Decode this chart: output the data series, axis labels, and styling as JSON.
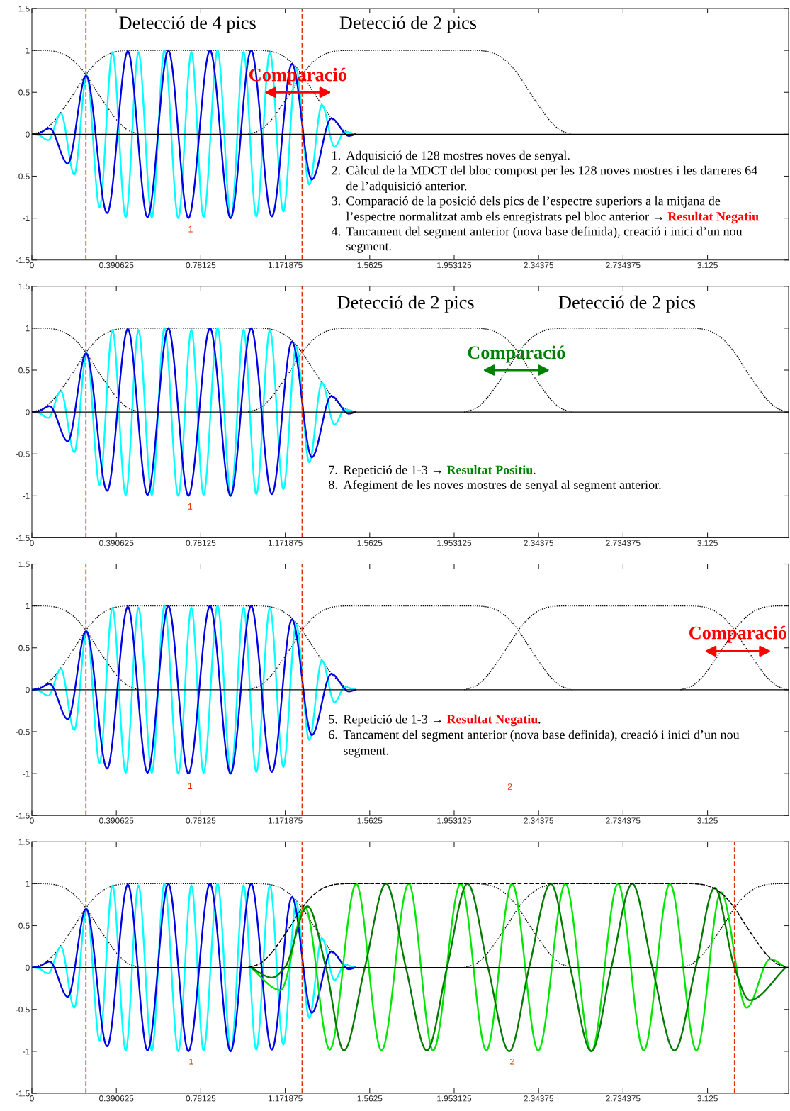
{
  "chart_data": [
    {
      "type": "line",
      "xlim": [
        0,
        3.5
      ],
      "ylim": [
        -1.5,
        1.5
      ],
      "xticks": [
        0,
        0.390625,
        0.78125,
        1.171875,
        1.5625,
        1.953125,
        2.34375,
        2.734375,
        3.125
      ],
      "yticks": [
        -1.5,
        -1,
        -0.5,
        0,
        0.5,
        1,
        1.5
      ],
      "series": [
        {
          "color": "#000000",
          "line_style": "dotted",
          "x": [
            0,
            0.05,
            0.1,
            0.15,
            0.2,
            0.25,
            0.3,
            0.35,
            0.4,
            0.45,
            0.5
          ],
          "values": [
            1,
            1,
            0.99,
            0.95,
            0.86,
            0.71,
            0.51,
            0.32,
            0.15,
            0.04,
            0
          ]
        },
        {
          "color": "#000000",
          "line_style": "dotted",
          "x": [
            0,
            0.05,
            0.1,
            0.15,
            0.2,
            0.25,
            0.3,
            0.35,
            0.4,
            0.45,
            0.5,
            1.0,
            1.05,
            1.1,
            1.15,
            1.2,
            1.25,
            1.3,
            1.35,
            1.4,
            1.45,
            1.5
          ],
          "values": [
            0,
            0.04,
            0.15,
            0.32,
            0.51,
            0.71,
            0.86,
            0.95,
            0.99,
            1,
            1,
            1,
            1,
            0.99,
            0.95,
            0.86,
            0.71,
            0.51,
            0.32,
            0.15,
            0.04,
            0
          ]
        },
        {
          "color": "#000000",
          "line_style": "dotted",
          "x": [
            1.0,
            1.05,
            1.1,
            1.15,
            1.2,
            1.25,
            1.3,
            1.35,
            1.4,
            1.45,
            1.5,
            2.0,
            2.05,
            2.1,
            2.15,
            2.2,
            2.25,
            2.3,
            2.35,
            2.4,
            2.45,
            2.5
          ],
          "values": [
            0,
            0.04,
            0.15,
            0.32,
            0.51,
            0.71,
            0.86,
            0.95,
            0.99,
            1,
            1,
            1,
            1,
            0.99,
            0.95,
            0.86,
            0.71,
            0.51,
            0.32,
            0.15,
            0.04,
            0
          ]
        },
        {
          "color": "#00ffff",
          "x": [
            0,
            0.03,
            0.076,
            0.134,
            0.196,
            0.254,
            0.313,
            0.373,
            0.434,
            0.493,
            0.555,
            0.613,
            0.677,
            0.738,
            0.794,
            0.859,
            0.921,
            0.979,
            1.038,
            1.101,
            1.163,
            1.222,
            1.283,
            1.341,
            1.4,
            1.447,
            1.496
          ],
          "values": [
            0,
            -0.01,
            -0.07,
            0.25,
            -0.48,
            0.7,
            -0.87,
            0.98,
            -0.99,
            0.98,
            -0.99,
            1,
            -1,
            0.98,
            -0.99,
            1,
            -1,
            0.98,
            -0.98,
            0.98,
            -0.92,
            0.78,
            -0.6,
            0.35,
            -0.15,
            0.03,
            0
          ]
        },
        {
          "color": "#0000e6",
          "x": [
            0,
            0.03,
            0.082,
            0.166,
            0.251,
            0.348,
            0.444,
            0.535,
            0.631,
            0.724,
            0.824,
            0.919,
            1.014,
            1.11,
            1.203,
            1.295,
            1.385,
            1.466,
            1.496
          ],
          "values": [
            0,
            0.01,
            0.07,
            -0.35,
            0.7,
            -0.94,
            0.99,
            -0.99,
            1,
            -1,
            1,
            -1,
            1,
            -0.98,
            0.84,
            -0.54,
            0.19,
            -0.02,
            0
          ]
        }
      ],
      "ref_lines": [
        {
          "axis": "y",
          "value": 0,
          "color": "#000000",
          "line_style": "solid"
        },
        {
          "axis": "x",
          "value": 0.25,
          "color": "#e03000",
          "line_style": "dashed"
        },
        {
          "axis": "x",
          "value": 1.25,
          "color": "#e03000",
          "line_style": "dashed"
        }
      ],
      "annotations": [
        "Detecció de 4 pics",
        "Detecció de 2 pics",
        "Comparació",
        "1",
        "1.",
        "Adquisició de 128 mostres noves de senyal.",
        "2.",
        "Càlcul de la MDCT del bloc compost per les 128 noves mostres i les darreres 64",
        "de l’adquisició anterior.",
        "3.",
        "Comparació de la posició dels pics de l’espectre superiors a la mitjana de",
        "l’espectre normalitzat amb els enregistrats pel bloc anterior →",
        " Resultat Negatiu",
        "4.",
        "Tancament del segment anterior (nova base definida), creació i inici d’un nou",
        "segment."
      ]
    },
    {
      "type": "line",
      "xlim": [
        0,
        3.5
      ],
      "ylim": [
        -1.5,
        1.5
      ],
      "xticks": [
        0,
        0.390625,
        0.78125,
        1.171875,
        1.5625,
        1.953125,
        2.34375,
        2.734375,
        3.125
      ],
      "yticks": [
        -1.5,
        -1,
        -0.5,
        0,
        0.5,
        1,
        1.5
      ],
      "series": [
        {
          "color": "#000000",
          "line_style": "dotted",
          "x": [
            0,
            0.05,
            0.1,
            0.15,
            0.2,
            0.25,
            0.3,
            0.35,
            0.4,
            0.45,
            0.5
          ],
          "values": [
            1,
            1,
            0.99,
            0.95,
            0.86,
            0.71,
            0.51,
            0.32,
            0.15,
            0.04,
            0
          ]
        },
        {
          "color": "#000000",
          "line_style": "dotted",
          "x": [
            0,
            0.05,
            0.1,
            0.15,
            0.2,
            0.25,
            0.3,
            0.35,
            0.4,
            0.45,
            0.5,
            1.0,
            1.05,
            1.1,
            1.15,
            1.2,
            1.25,
            1.3,
            1.35,
            1.4,
            1.45,
            1.5
          ],
          "values": [
            0,
            0.04,
            0.15,
            0.32,
            0.51,
            0.71,
            0.86,
            0.95,
            0.99,
            1,
            1,
            1,
            1,
            0.99,
            0.95,
            0.86,
            0.71,
            0.51,
            0.32,
            0.15,
            0.04,
            0
          ]
        },
        {
          "color": "#000000",
          "line_style": "dotted",
          "x": [
            1.0,
            1.05,
            1.1,
            1.15,
            1.2,
            1.25,
            1.3,
            1.35,
            1.4,
            1.45,
            1.5,
            2.0,
            2.05,
            2.1,
            2.15,
            2.2,
            2.25,
            2.3,
            2.35,
            2.4,
            2.45,
            2.5
          ],
          "values": [
            0,
            0.04,
            0.15,
            0.32,
            0.51,
            0.71,
            0.86,
            0.95,
            0.99,
            1,
            1,
            1,
            1,
            0.99,
            0.95,
            0.86,
            0.71,
            0.51,
            0.32,
            0.15,
            0.04,
            0
          ]
        },
        {
          "color": "#000000",
          "line_style": "dotted",
          "x": [
            2.0,
            2.05,
            2.1,
            2.15,
            2.2,
            2.25,
            2.3,
            2.35,
            2.4,
            2.45,
            2.5,
            3.0,
            3.05,
            3.1,
            3.15,
            3.2,
            3.25,
            3.3,
            3.35,
            3.4,
            3.45,
            3.5
          ],
          "values": [
            0,
            0.04,
            0.15,
            0.32,
            0.51,
            0.71,
            0.86,
            0.95,
            0.99,
            1,
            1,
            1,
            1,
            0.99,
            0.95,
            0.86,
            0.71,
            0.51,
            0.32,
            0.15,
            0.04,
            0
          ]
        },
        {
          "color": "#00ffff",
          "x": [
            0,
            0.03,
            0.076,
            0.134,
            0.196,
            0.254,
            0.313,
            0.373,
            0.434,
            0.493,
            0.555,
            0.613,
            0.677,
            0.738,
            0.794,
            0.859,
            0.921,
            0.979,
            1.038,
            1.101,
            1.163,
            1.222,
            1.283,
            1.341,
            1.4,
            1.447,
            1.496
          ],
          "values": [
            0,
            -0.01,
            -0.07,
            0.25,
            -0.48,
            0.7,
            -0.87,
            0.98,
            -0.99,
            0.98,
            -0.99,
            1,
            -1,
            0.98,
            -0.99,
            1,
            -1,
            0.98,
            -0.98,
            0.98,
            -0.92,
            0.78,
            -0.6,
            0.35,
            -0.15,
            0.03,
            0
          ]
        },
        {
          "color": "#0000e6",
          "x": [
            0,
            0.03,
            0.082,
            0.166,
            0.251,
            0.348,
            0.444,
            0.535,
            0.631,
            0.724,
            0.824,
            0.919,
            1.014,
            1.11,
            1.203,
            1.295,
            1.385,
            1.466,
            1.496
          ],
          "values": [
            0,
            0.01,
            0.07,
            -0.35,
            0.7,
            -0.94,
            0.99,
            -0.99,
            1,
            -1,
            1,
            -1,
            1,
            -0.98,
            0.84,
            -0.54,
            0.19,
            -0.02,
            0
          ]
        }
      ],
      "ref_lines": [
        {
          "axis": "y",
          "value": 0,
          "color": "#000000",
          "line_style": "solid"
        },
        {
          "axis": "x",
          "value": 0.25,
          "color": "#e03000",
          "line_style": "dashed"
        },
        {
          "axis": "x",
          "value": 1.25,
          "color": "#e03000",
          "line_style": "dashed"
        }
      ],
      "annotations": [
        "Detecció de 2 pics",
        "Detecció de 2 pics",
        "Comparació",
        "1",
        "7.",
        "Repetició de 1-3 →",
        " Resultat Positiu",
        ".",
        "8.",
        "Afegiment de les noves mostres de senyal al segment anterior."
      ]
    },
    {
      "type": "line",
      "xlim": [
        0,
        3.5
      ],
      "ylim": [
        -1.5,
        1.5
      ],
      "xticks": [
        0,
        0.390625,
        0.78125,
        1.171875,
        1.5625,
        1.953125,
        2.34375,
        2.734375,
        3.125
      ],
      "yticks": [
        -1.5,
        -1,
        -0.5,
        0,
        0.5,
        1,
        1.5
      ],
      "series": [
        {
          "color": "#000000",
          "line_style": "dotted",
          "x": [
            0,
            0.05,
            0.1,
            0.15,
            0.2,
            0.25,
            0.3,
            0.35,
            0.4,
            0.45,
            0.5
          ],
          "values": [
            1,
            1,
            0.99,
            0.95,
            0.86,
            0.71,
            0.51,
            0.32,
            0.15,
            0.04,
            0
          ]
        },
        {
          "color": "#000000",
          "line_style": "dotted",
          "x": [
            0,
            0.05,
            0.1,
            0.15,
            0.2,
            0.25,
            0.3,
            0.35,
            0.4,
            0.45,
            0.5,
            1.0,
            1.05,
            1.1,
            1.15,
            1.2,
            1.25,
            1.3,
            1.35,
            1.4,
            1.45,
            1.5
          ],
          "values": [
            0,
            0.04,
            0.15,
            0.32,
            0.51,
            0.71,
            0.86,
            0.95,
            0.99,
            1,
            1,
            1,
            1,
            0.99,
            0.95,
            0.86,
            0.71,
            0.51,
            0.32,
            0.15,
            0.04,
            0
          ]
        },
        {
          "color": "#000000",
          "line_style": "dotted",
          "x": [
            1.0,
            1.05,
            1.1,
            1.15,
            1.2,
            1.25,
            1.3,
            1.35,
            1.4,
            1.45,
            1.5,
            2.0,
            2.05,
            2.1,
            2.15,
            2.2,
            2.25,
            2.3,
            2.35,
            2.4,
            2.45,
            2.5
          ],
          "values": [
            0,
            0.04,
            0.15,
            0.32,
            0.51,
            0.71,
            0.86,
            0.95,
            0.99,
            1,
            1,
            1,
            1,
            0.99,
            0.95,
            0.86,
            0.71,
            0.51,
            0.32,
            0.15,
            0.04,
            0
          ]
        },
        {
          "color": "#000000",
          "line_style": "dotted",
          "x": [
            2.0,
            2.05,
            2.1,
            2.15,
            2.2,
            2.25,
            2.3,
            2.35,
            2.4,
            2.45,
            2.5,
            3.0,
            3.05,
            3.1,
            3.15,
            3.2,
            3.25,
            3.3,
            3.35,
            3.4,
            3.45,
            3.5
          ],
          "values": [
            0,
            0.04,
            0.15,
            0.32,
            0.51,
            0.71,
            0.86,
            0.95,
            0.99,
            1,
            1,
            1,
            1,
            0.99,
            0.95,
            0.86,
            0.71,
            0.51,
            0.32,
            0.15,
            0.04,
            0
          ]
        },
        {
          "color": "#000000",
          "line_style": "dotted",
          "x": [
            3.0,
            3.05,
            3.1,
            3.15,
            3.2,
            3.25,
            3.3,
            3.35,
            3.4,
            3.45,
            3.5
          ],
          "values": [
            0,
            0.04,
            0.15,
            0.32,
            0.51,
            0.71,
            0.86,
            0.95,
            0.99,
            1,
            1
          ]
        },
        {
          "color": "#00ffff",
          "x": [
            0,
            0.03,
            0.076,
            0.134,
            0.196,
            0.254,
            0.313,
            0.373,
            0.434,
            0.493,
            0.555,
            0.613,
            0.677,
            0.738,
            0.794,
            0.859,
            0.921,
            0.979,
            1.038,
            1.101,
            1.163,
            1.222,
            1.283,
            1.341,
            1.4,
            1.447,
            1.496
          ],
          "values": [
            0,
            -0.01,
            -0.07,
            0.25,
            -0.48,
            0.7,
            -0.87,
            0.98,
            -0.99,
            0.98,
            -0.99,
            1,
            -1,
            0.98,
            -0.99,
            1,
            -1,
            0.98,
            -0.98,
            0.98,
            -0.92,
            0.78,
            -0.6,
            0.35,
            -0.15,
            0.03,
            0
          ]
        },
        {
          "color": "#0000e6",
          "x": [
            0,
            0.03,
            0.082,
            0.166,
            0.251,
            0.348,
            0.444,
            0.535,
            0.631,
            0.724,
            0.824,
            0.919,
            1.014,
            1.11,
            1.203,
            1.295,
            1.385,
            1.466,
            1.496
          ],
          "values": [
            0,
            0.01,
            0.07,
            -0.35,
            0.7,
            -0.94,
            0.99,
            -0.99,
            1,
            -1,
            1,
            -1,
            1,
            -0.98,
            0.84,
            -0.54,
            0.19,
            -0.02,
            0
          ]
        }
      ],
      "ref_lines": [
        {
          "axis": "y",
          "value": 0,
          "color": "#000000",
          "line_style": "solid"
        },
        {
          "axis": "x",
          "value": 0.25,
          "color": "#e03000",
          "line_style": "dashed"
        },
        {
          "axis": "x",
          "value": 1.25,
          "color": "#e03000",
          "line_style": "dashed"
        }
      ],
      "annotations": [
        "Comparació",
        "1",
        "2",
        "5.",
        "Repetició de 1-3 →",
        " Resultat Negatiu",
        ".",
        "6.",
        "Tancament del segment anterior (nova base definida), creació i inici d’un nou",
        "segment."
      ]
    },
    {
      "type": "line",
      "xlim": [
        0,
        3.5
      ],
      "ylim": [
        -1.5,
        1.5
      ],
      "xticks": [
        0,
        0.390625,
        0.78125,
        1.171875,
        1.5625,
        1.953125,
        2.34375,
        2.734375,
        3.125
      ],
      "yticks": [
        -1.5,
        -1,
        -0.5,
        0,
        0.5,
        1,
        1.5
      ],
      "series": [
        {
          "color": "#000000",
          "line_style": "dotted",
          "x": [
            0,
            0.05,
            0.1,
            0.15,
            0.2,
            0.25,
            0.3,
            0.35,
            0.4,
            0.45,
            0.5
          ],
          "values": [
            1,
            1,
            0.99,
            0.95,
            0.86,
            0.71,
            0.51,
            0.32,
            0.15,
            0.04,
            0
          ]
        },
        {
          "color": "#000000",
          "line_style": "dotted",
          "x": [
            0,
            0.05,
            0.1,
            0.15,
            0.2,
            0.25,
            0.3,
            0.35,
            0.4,
            0.45,
            0.5,
            1.0,
            1.05,
            1.1,
            1.15,
            1.2,
            1.25,
            1.3,
            1.35,
            1.4,
            1.45,
            1.5
          ],
          "values": [
            0,
            0.04,
            0.15,
            0.32,
            0.51,
            0.71,
            0.86,
            0.95,
            0.99,
            1,
            1,
            1,
            1,
            0.99,
            0.95,
            0.86,
            0.71,
            0.51,
            0.32,
            0.15,
            0.04,
            0
          ]
        },
        {
          "color": "#000000",
          "line_style": "dotted",
          "x": [
            1.0,
            1.05,
            1.1,
            1.15,
            1.2,
            1.25,
            1.3,
            1.35,
            1.4,
            1.45,
            1.5,
            2.0,
            2.05,
            2.1,
            2.15,
            2.2,
            2.25,
            2.3,
            2.35,
            2.4,
            2.45,
            2.5
          ],
          "values": [
            0,
            0.04,
            0.15,
            0.32,
            0.51,
            0.71,
            0.86,
            0.95,
            0.99,
            1,
            1,
            1,
            1,
            0.99,
            0.95,
            0.86,
            0.71,
            0.51,
            0.32,
            0.15,
            0.04,
            0
          ]
        },
        {
          "color": "#000000",
          "line_style": "dotted",
          "x": [
            2.0,
            2.05,
            2.1,
            2.15,
            2.2,
            2.25,
            2.3,
            2.35,
            2.4,
            2.45,
            2.5,
            3.0,
            3.05,
            3.1,
            3.15,
            3.2,
            3.25,
            3.3,
            3.35,
            3.4,
            3.45,
            3.5
          ],
          "values": [
            0,
            0.04,
            0.15,
            0.32,
            0.51,
            0.71,
            0.86,
            0.95,
            0.99,
            1,
            1,
            1,
            1,
            0.99,
            0.95,
            0.86,
            0.71,
            0.51,
            0.32,
            0.15,
            0.04,
            0
          ]
        },
        {
          "color": "#000000",
          "line_style": "dotted",
          "x": [
            3.0,
            3.05,
            3.1,
            3.15,
            3.2,
            3.25,
            3.3,
            3.35,
            3.4,
            3.45,
            3.5
          ],
          "values": [
            0,
            0.04,
            0.15,
            0.32,
            0.51,
            0.71,
            0.86,
            0.95,
            0.99,
            1,
            1
          ]
        },
        {
          "color": "#00ffff",
          "x": [
            0,
            0.03,
            0.076,
            0.134,
            0.196,
            0.254,
            0.313,
            0.373,
            0.434,
            0.493,
            0.555,
            0.613,
            0.677,
            0.738,
            0.794,
            0.859,
            0.921,
            0.979,
            1.038,
            1.101,
            1.163,
            1.222,
            1.283,
            1.341,
            1.4,
            1.447,
            1.496
          ],
          "values": [
            0,
            -0.01,
            -0.07,
            0.25,
            -0.48,
            0.7,
            -0.87,
            0.98,
            -0.99,
            0.98,
            -0.99,
            1,
            -1,
            0.98,
            -0.99,
            1,
            -1,
            0.98,
            -0.98,
            0.98,
            -0.92,
            0.78,
            -0.6,
            0.35,
            -0.15,
            0.03,
            0
          ]
        },
        {
          "color": "#0000e6",
          "x": [
            0,
            0.03,
            0.082,
            0.166,
            0.251,
            0.348,
            0.444,
            0.535,
            0.631,
            0.724,
            0.824,
            0.919,
            1.014,
            1.11,
            1.203,
            1.295,
            1.385,
            1.466,
            1.496
          ],
          "values": [
            0,
            0.01,
            0.07,
            -0.35,
            0.7,
            -0.94,
            0.99,
            -0.99,
            1,
            -1,
            1,
            -1,
            1,
            -0.98,
            0.84,
            -0.54,
            0.19,
            -0.02,
            0
          ]
        },
        {
          "color": "#00e600",
          "x": [
            1.012,
            1.15,
            1.263,
            1.378,
            1.5,
            1.617,
            1.743,
            1.856,
            1.983,
            2.102,
            2.221,
            2.342,
            2.468,
            2.588,
            2.711,
            2.83,
            2.951,
            3.074,
            3.187,
            3.306,
            3.415,
            3.487
          ],
          "values": [
            0,
            -0.27,
            0.72,
            -0.98,
            1,
            -0.99,
            1,
            -0.99,
            1,
            -0.99,
            1,
            -0.99,
            1,
            -1,
            1,
            -0.99,
            1,
            -0.99,
            0.9,
            -0.48,
            0.1,
            0
          ]
        },
        {
          "color": "#007a00",
          "x": [
            1.012,
            1.111,
            1.17,
            1.275,
            1.36,
            1.443,
            1.54,
            1.638,
            1.73,
            1.827,
            1.92,
            2.015,
            2.11,
            2.208,
            2.3,
            2.4,
            2.49,
            2.588,
            2.68,
            2.777,
            2.87,
            2.972,
            3.07,
            3.158,
            3.25,
            3.32,
            3.487
          ],
          "values": [
            0,
            -0.12,
            0,
            0.73,
            0,
            -0.99,
            0,
            1,
            0,
            -0.99,
            0,
            1,
            0,
            -1,
            0,
            1,
            0,
            -1,
            0,
            1,
            0,
            -0.99,
            0,
            0.95,
            0,
            -0.39,
            0
          ]
        },
        {
          "color": "#000000",
          "line_style": "dashed",
          "x": [
            1.0,
            1.05,
            1.1,
            1.15,
            1.2,
            1.25,
            1.3,
            1.35,
            1.4,
            1.45,
            1.5,
            3.0,
            3.05,
            3.1,
            3.15,
            3.2,
            3.25,
            3.3,
            3.35,
            3.4,
            3.45,
            3.5
          ],
          "values": [
            0,
            0.04,
            0.15,
            0.32,
            0.51,
            0.71,
            0.86,
            0.95,
            0.99,
            1,
            1,
            1,
            1,
            0.99,
            0.95,
            0.86,
            0.71,
            0.51,
            0.32,
            0.15,
            0.04,
            0
          ]
        }
      ],
      "ref_lines": [
        {
          "axis": "y",
          "value": 0,
          "color": "#000000",
          "line_style": "solid"
        },
        {
          "axis": "x",
          "value": 0.25,
          "color": "#e03000",
          "line_style": "dashed"
        },
        {
          "axis": "x",
          "value": 1.25,
          "color": "#e03000",
          "line_style": "dashed"
        },
        {
          "axis": "x",
          "value": 3.25,
          "color": "#e03000",
          "line_style": "dashed"
        }
      ],
      "annotations": [
        "1",
        "2"
      ]
    }
  ]
}
